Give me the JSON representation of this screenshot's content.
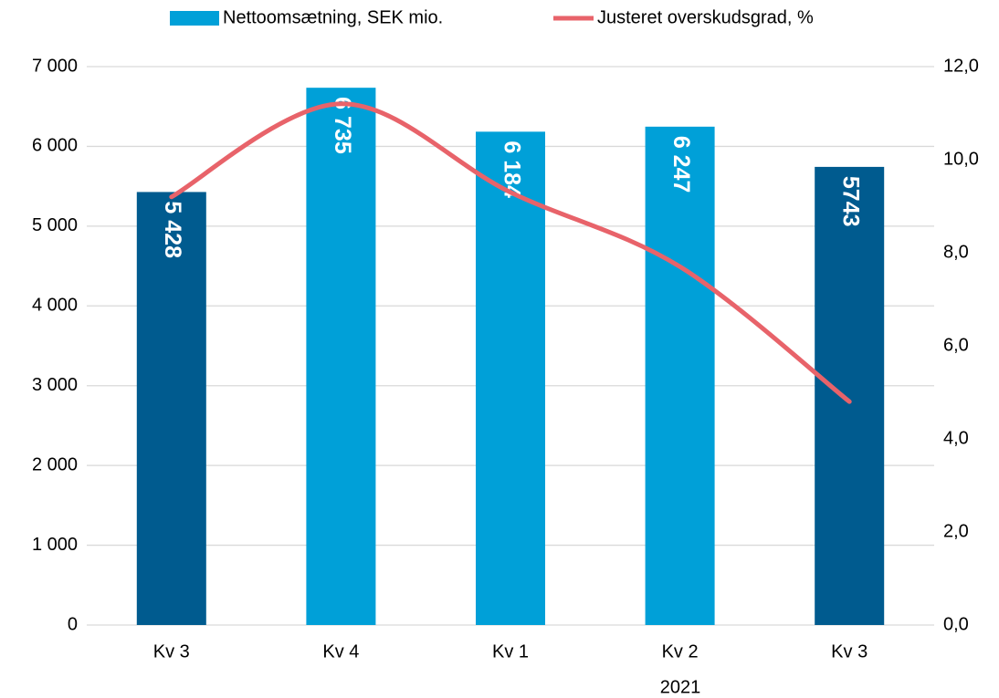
{
  "chart_data": {
    "type": "bar_line",
    "categories": [
      "Kv 3",
      "Kv 4",
      "Kv 1",
      "Kv 2",
      "Kv 3"
    ],
    "group_label": "2021",
    "series": [
      {
        "name": "Nettoomsætning, SEK mio.",
        "type": "bar",
        "color": "#00a0d8",
        "colors": [
          "#005b8f",
          "#00a0d8",
          "#00a0d8",
          "#00a0d8",
          "#005b8f"
        ],
        "values": [
          5428,
          6735,
          6184,
          6247,
          5743
        ],
        "value_labels": [
          "5 428",
          "6 735",
          "6 184",
          "6 247",
          "5743"
        ]
      },
      {
        "name": "Justeret overskudsgrad, %",
        "type": "line",
        "axis": "y2",
        "color": "#e8636a",
        "values": [
          9.2,
          11.2,
          9.3,
          7.7,
          4.8
        ]
      }
    ],
    "ylim": [
      0,
      7000
    ],
    "yticks": [
      0,
      {
        "value": 1000,
        "label": "1 000"
      },
      {
        "value": 2000,
        "label": "2 000"
      },
      {
        "value": 3000,
        "label": "3 000"
      },
      {
        "value": 4000,
        "label": "4 000"
      },
      {
        "value": 5000,
        "label": "5 000"
      },
      {
        "value": 6000,
        "label": "6 000"
      },
      {
        "value": 7000,
        "label": "7 000"
      }
    ],
    "y2lim": [
      0,
      12
    ],
    "y2ticks": [
      {
        "value": 0,
        "label": "0,0"
      },
      {
        "value": 2,
        "label": "2,0"
      },
      {
        "value": 4,
        "label": "4,0"
      },
      {
        "value": 6,
        "label": "6,0"
      },
      {
        "value": 8,
        "label": "8,0"
      },
      {
        "value": 10,
        "label": "10,0"
      },
      {
        "value": 12,
        "label": "12,0"
      }
    ],
    "grid": true,
    "legend": "top"
  }
}
